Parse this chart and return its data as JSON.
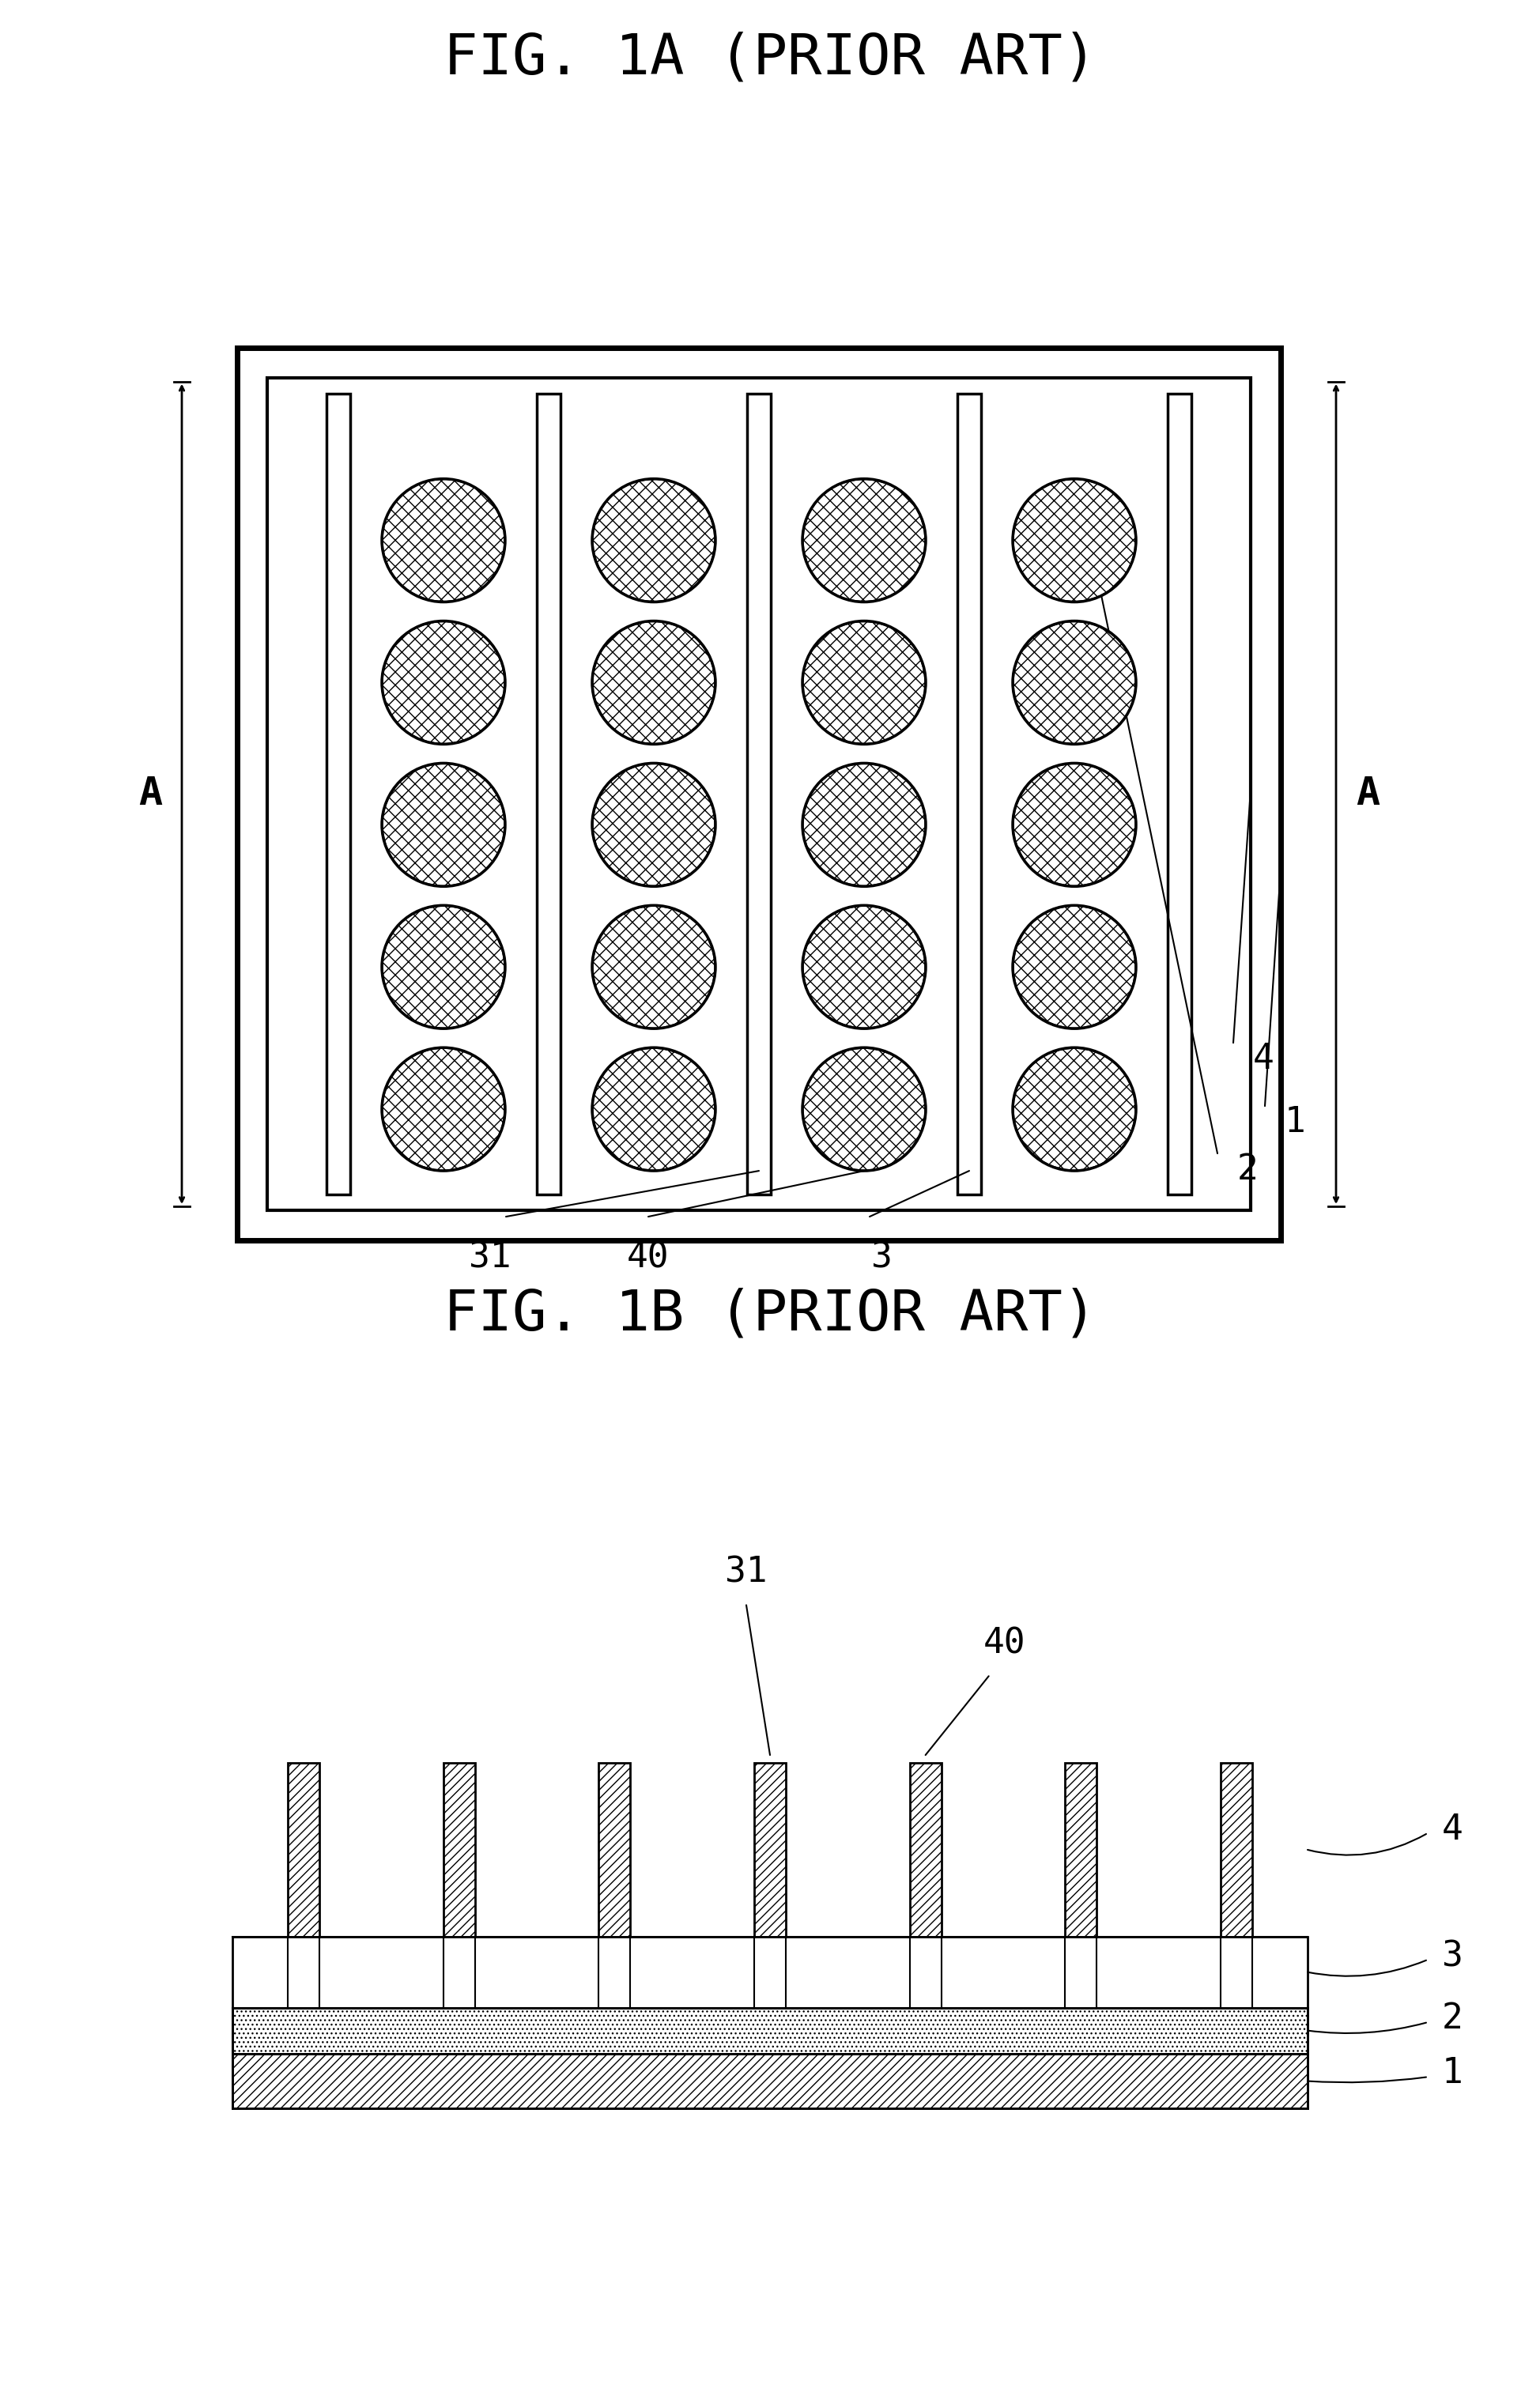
{
  "fig1a_title": "FIG. 1A (PRIOR ART)",
  "fig1b_title": "FIG. 1B (PRIOR ART)",
  "bg_color": "#ffffff",
  "line_color": "#000000",
  "title_fontsize": 52,
  "label_fontsize": 36,
  "annot_fontsize": 32,
  "fig_width": 19.49,
  "fig_height": 30.17
}
